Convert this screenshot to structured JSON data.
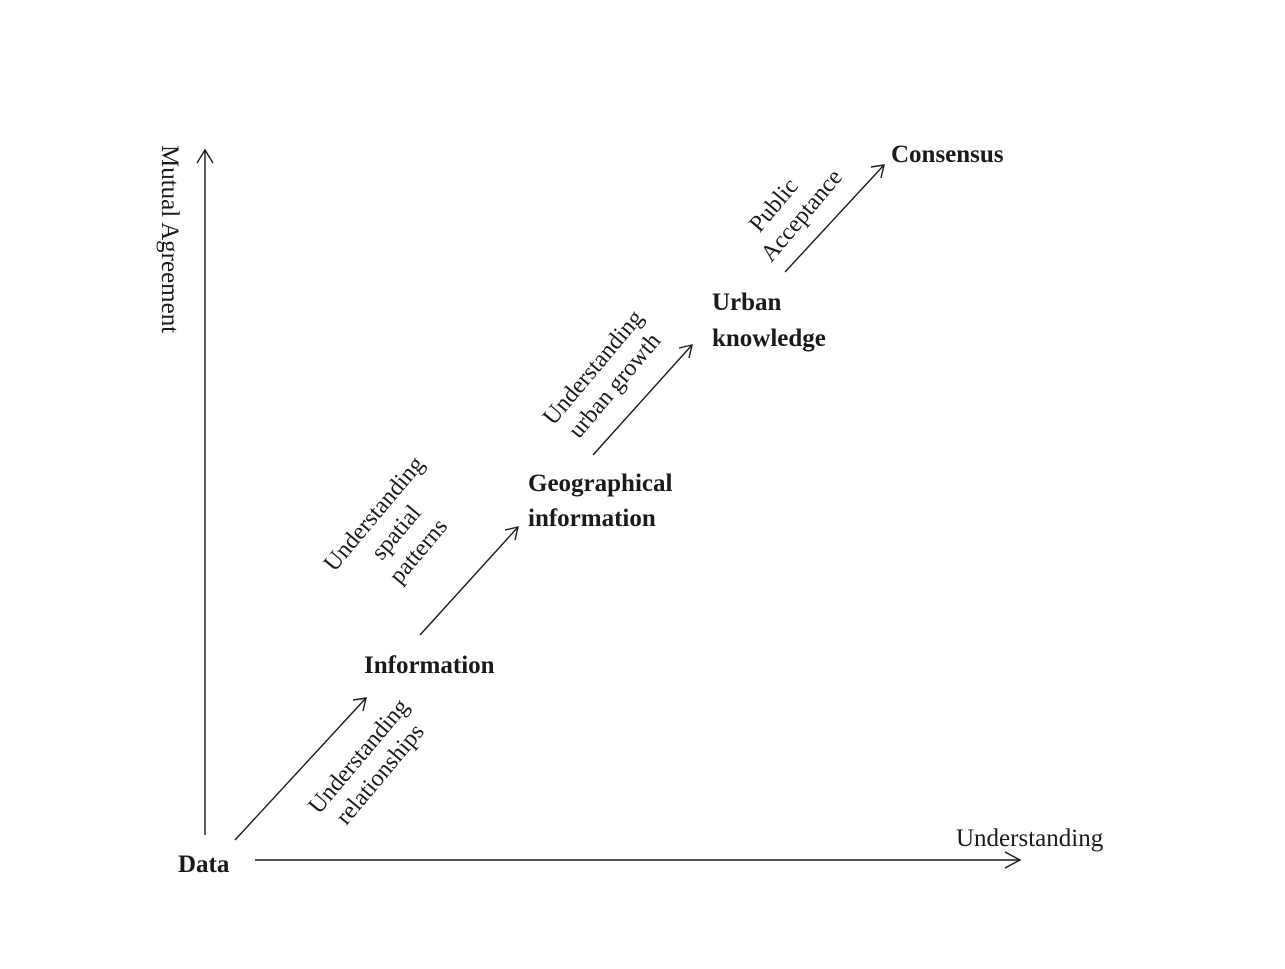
{
  "axes": {
    "y_label": "Mutual Agreement",
    "x_label": "Understanding"
  },
  "nodes": {
    "data": "Data",
    "information": "Information",
    "geographical_line1": "Geographical",
    "geographical_line2": "information",
    "urban_line1": "Urban",
    "urban_line2": "knowledge",
    "consensus": "Consensus"
  },
  "transitions": {
    "t1_line1": "Understanding",
    "t1_line2": "relationships",
    "t2_line1": "Understanding",
    "t2_line2": "spatial",
    "t2_line3": "patterns",
    "t3_line1": "Understanding",
    "t3_line2": "urban growth",
    "t4_line1": "Public",
    "t4_line2": "Acceptance"
  }
}
